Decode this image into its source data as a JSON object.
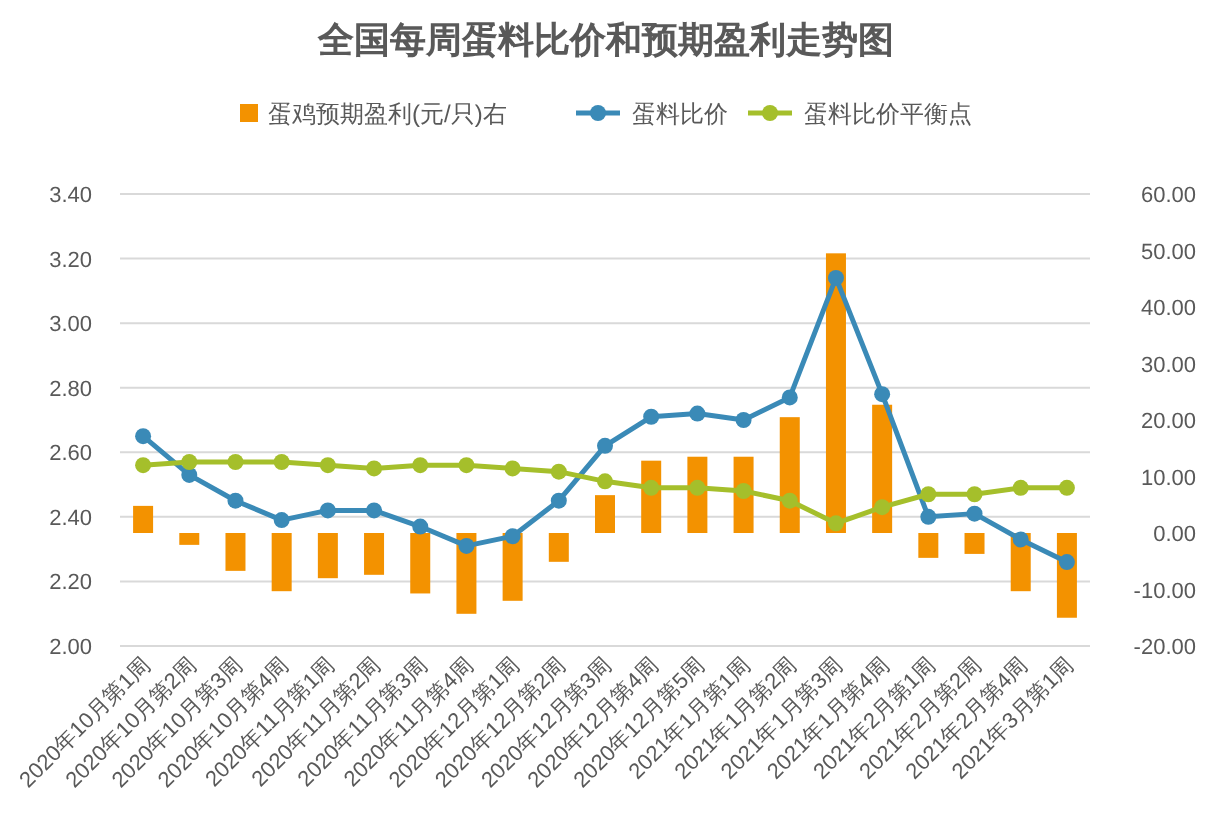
{
  "chart_data": {
    "type": "line",
    "title": "全国每周蛋料比价和预期盈利走势图",
    "categories": [
      "2020年10月第1周",
      "2020年10月第2周",
      "2020年10月第3周",
      "2020年10月第4周",
      "2020年11月第1周",
      "2020年11月第2周",
      "2020年11月第3周",
      "2020年11月第4周",
      "2020年12月第1周",
      "2020年12月第2周",
      "2020年12月第3周",
      "2020年12月第4周",
      "2020年12月第5周",
      "2021年1月第1周",
      "2021年1月第2周",
      "2021年1月第3周",
      "2021年1月第4周",
      "2021年2月第1周",
      "2021年2月第2周",
      "2021年2月第4周",
      "2021年3月第1周"
    ],
    "series": [
      {
        "name": "蛋鸡预期盈利(元/只)右",
        "type": "bar",
        "axis": "y2",
        "color": "#f39200",
        "values": [
          4.8,
          -2.1,
          -6.7,
          -10.3,
          -8.0,
          -7.4,
          -10.7,
          -14.3,
          -12.0,
          -5.1,
          6.7,
          12.8,
          13.5,
          13.5,
          20.5,
          49.5,
          22.7,
          -4.4,
          -3.7,
          -10.3,
          -15.0
        ]
      },
      {
        "name": "蛋料比价",
        "color": "#3a8ab7",
        "marker": "circle",
        "values": [
          2.65,
          2.53,
          2.45,
          2.39,
          2.42,
          2.42,
          2.37,
          2.31,
          2.34,
          2.45,
          2.62,
          2.71,
          2.72,
          2.7,
          2.77,
          3.14,
          2.78,
          2.4,
          2.41,
          2.33,
          2.26
        ]
      },
      {
        "name": "蛋料比价平衡点",
        "color": "#a5bf2b",
        "marker": "circle",
        "values": [
          2.56,
          2.57,
          2.57,
          2.57,
          2.56,
          2.55,
          2.56,
          2.56,
          2.55,
          2.54,
          2.51,
          2.49,
          2.49,
          2.48,
          2.45,
          2.38,
          2.43,
          2.47,
          2.47,
          2.49,
          2.49
        ]
      }
    ],
    "ylim": [
      2.0,
      3.4
    ],
    "yticks": [
      {
        "value": 2.0,
        "label": "2.00"
      },
      {
        "value": 2.2,
        "label": "2.20"
      },
      {
        "value": 2.4,
        "label": "2.40"
      },
      {
        "value": 2.6,
        "label": "2.60"
      },
      {
        "value": 2.8,
        "label": "2.80"
      },
      {
        "value": 3.0,
        "label": "3.00"
      },
      {
        "value": 3.2,
        "label": "3.20"
      },
      {
        "value": 3.4,
        "label": "3.40"
      }
    ],
    "y2lim": [
      -20,
      60
    ],
    "y2ticks": [
      {
        "value": -20,
        "label": "-20.00"
      },
      {
        "value": -10,
        "label": "-10.00"
      },
      {
        "value": 0,
        "label": "0.00"
      },
      {
        "value": 10,
        "label": "10.00"
      },
      {
        "value": 20,
        "label": "20.00"
      },
      {
        "value": 30,
        "label": "30.00"
      },
      {
        "value": 40,
        "label": "40.00"
      },
      {
        "value": 50,
        "label": "50.00"
      },
      {
        "value": 60,
        "label": "60.00"
      }
    ],
    "grid": "y",
    "legend": "top"
  }
}
